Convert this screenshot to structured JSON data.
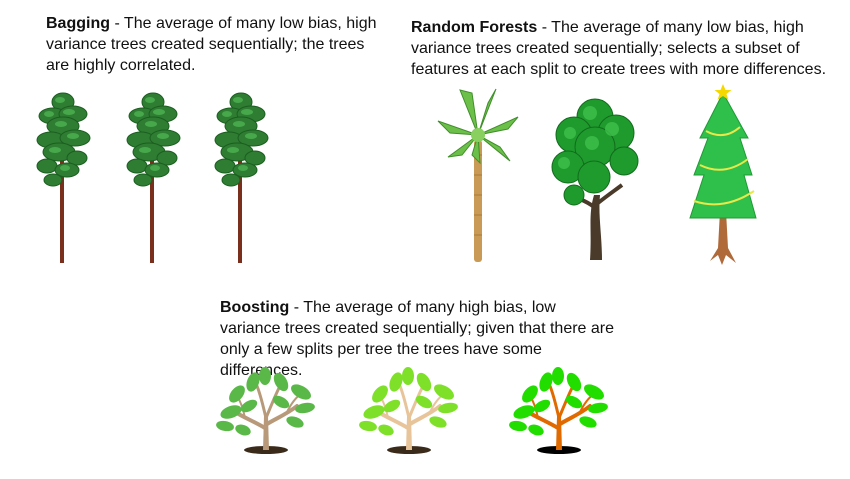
{
  "bagging": {
    "title": "Bagging",
    "text": " - The average of many low bias, high variance trees created sequentially; the trees are highly correlated."
  },
  "random_forests": {
    "title": "Random Forests",
    "text": " - The average of many low bias, high variance trees created sequentially; selects a subset of features at each split to create trees with more differences."
  },
  "boosting": {
    "title": "Boosting",
    "text": " - The average of many high bias, low variance trees created sequentially; given that there are only a few splits per tree the trees have some differences."
  },
  "icons": {
    "bagging_trees": [
      "pine-tree-icon",
      "pine-tree-icon",
      "pine-tree-icon"
    ],
    "random_forest_trees": [
      "palm-tree-icon",
      "oak-tree-icon",
      "christmas-tree-icon"
    ],
    "boosting_trees": [
      "sapling-tree-icon",
      "sapling-tree-icon",
      "sapling-tree-icon"
    ]
  },
  "colors": {
    "pine_foliage": "#2e7d32",
    "pine_trunk": "#7a2e1c",
    "palm_leaves": "#6cc04a",
    "palm_trunk": "#c89a55",
    "oak_foliage": "#1f9b2e",
    "oak_trunk": "#4a3a2a",
    "xmas_foliage": "#2fbf4b",
    "xmas_garland": "#e8e84a",
    "xmas_star": "#f5d800",
    "xmas_trunk": "#b06a3a",
    "sapling_1_leaves": "#5ab848",
    "sapling_1_trunk": "#b89a7a",
    "sapling_2_leaves": "#7fe02a",
    "sapling_2_trunk": "#e8c49a",
    "sapling_3_leaves": "#22dd00",
    "sapling_3_trunk": "#e06a00"
  }
}
